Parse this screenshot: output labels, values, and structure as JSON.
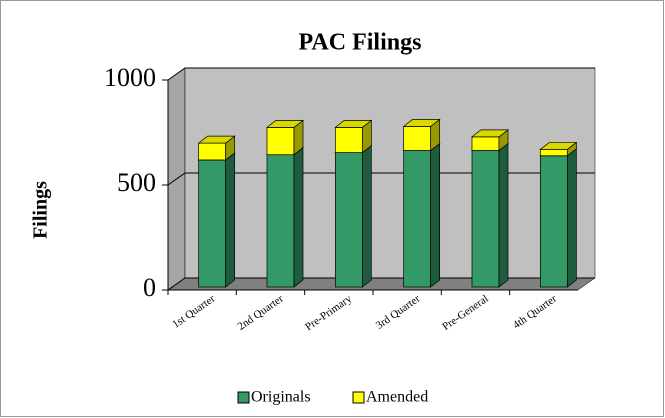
{
  "chart_data": {
    "type": "bar",
    "stacked": true,
    "title": "PAC Filings",
    "y_label": "Filings",
    "categories": [
      "1st Quarter",
      "2nd Quarter",
      "Pre-Primary",
      "3rd Quarter",
      "Pre-General",
      "4th Quarter"
    ],
    "series": [
      {
        "name": "Originals",
        "color": "#339966",
        "values": [
          605,
          630,
          640,
          650,
          650,
          625
        ]
      },
      {
        "name": "Amended",
        "color": "#ffff00",
        "values": [
          80,
          130,
          120,
          115,
          65,
          30
        ]
      }
    ],
    "ylim": [
      0,
      1000
    ],
    "yticks": [
      0,
      500,
      1000
    ],
    "grid": true,
    "legend": "bottom"
  }
}
